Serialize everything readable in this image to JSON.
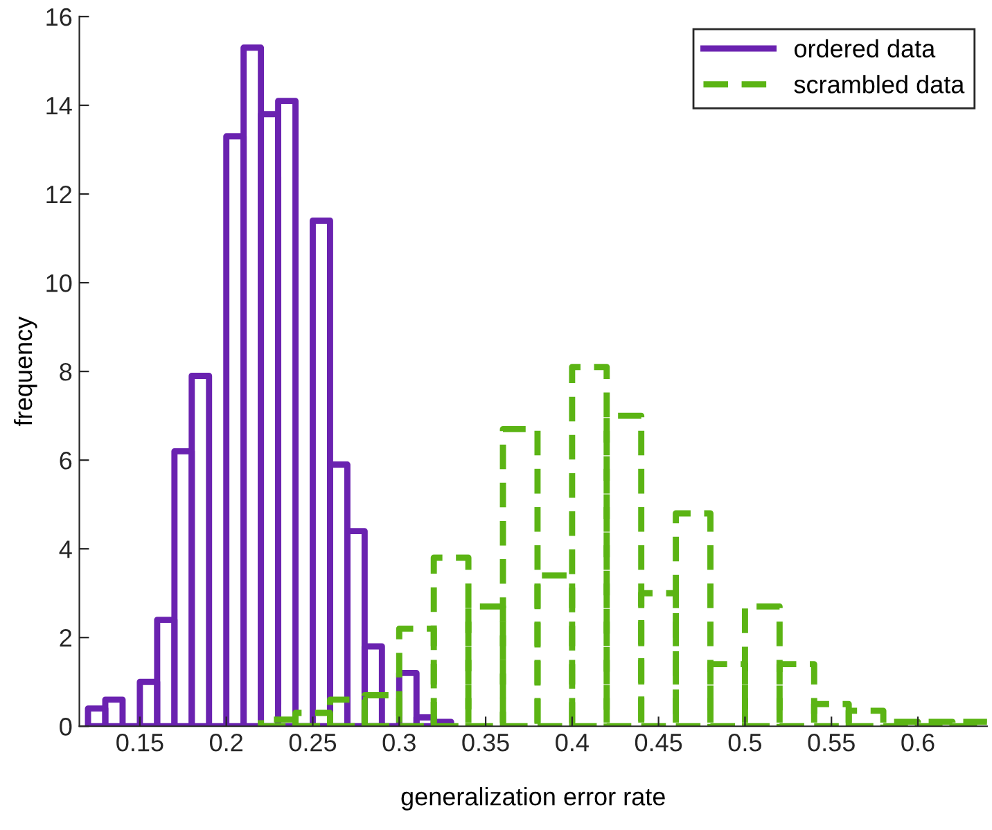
{
  "chart_data": {
    "type": "histogram",
    "xlabel": "generalization error rate",
    "ylabel": "frequency",
    "xlim": [
      0.115,
      0.64
    ],
    "xticks": [
      0.15,
      0.2,
      0.25,
      0.3,
      0.35,
      0.4,
      0.45,
      0.5,
      0.55,
      0.6
    ],
    "ylim": [
      0,
      16
    ],
    "yticks": [
      0,
      2,
      4,
      6,
      8,
      10,
      12,
      14,
      16
    ],
    "grid": false,
    "legend": "top right",
    "bins": [
      0.12,
      0.13,
      0.14,
      0.15,
      0.16,
      0.17,
      0.18,
      0.19,
      0.2,
      0.21,
      0.22,
      0.23,
      0.24,
      0.25,
      0.26,
      0.27,
      0.28,
      0.29,
      0.3,
      0.31,
      0.32,
      0.33
    ],
    "series": [
      {
        "name": "ordered data",
        "color": "#6a22b0",
        "line_style": "solid",
        "values": [
          0.4,
          0.6,
          0,
          1.0,
          2.4,
          6.2,
          7.9,
          0,
          13.3,
          15.3,
          13.8,
          14.1,
          0,
          11.4,
          5.9,
          4.4,
          1.8,
          0,
          1.2,
          0.2,
          0.1
        ]
      },
      {
        "name": "scrambled data",
        "color": "#5bb414",
        "line_style": "dashed",
        "bins": [
          0.22,
          0.24,
          0.26,
          0.28,
          0.3,
          0.32,
          0.34,
          0.36,
          0.38,
          0.4,
          0.42,
          0.44,
          0.46,
          0.48,
          0.5,
          0.52,
          0.54,
          0.56,
          0.58,
          0.6,
          0.62,
          0.64
        ],
        "values": [
          0.15,
          0.3,
          0.6,
          0.7,
          2.2,
          3.8,
          2.7,
          6.7,
          3.4,
          8.1,
          7.0,
          3.0,
          4.8,
          1.4,
          2.7,
          1.4,
          0.5,
          0.35,
          0.1,
          0.1,
          0.1
        ]
      }
    ]
  }
}
